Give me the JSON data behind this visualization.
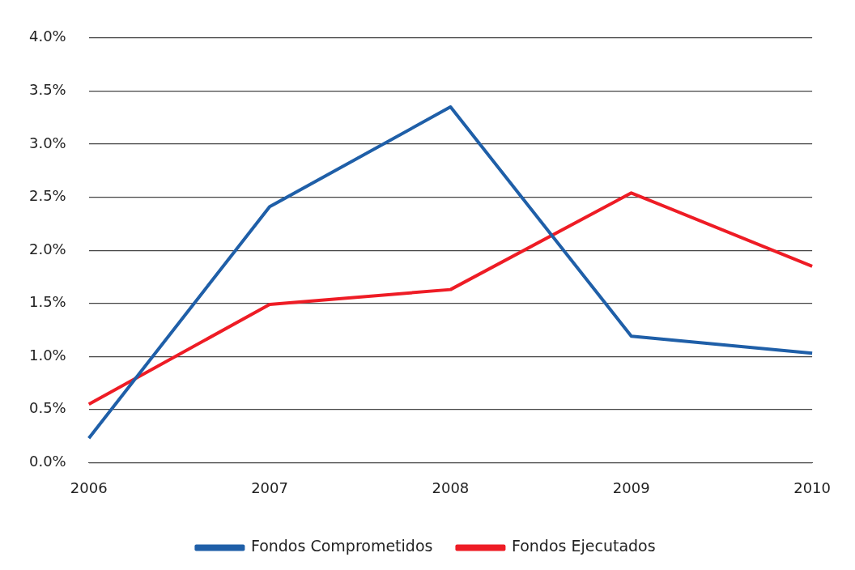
{
  "chart_data": {
    "type": "line",
    "categories": [
      "2006",
      "2007",
      "2008",
      "2009",
      "2010"
    ],
    "series": [
      {
        "name": "Fondos Comprometidos",
        "color": "#1f5fa8",
        "values": [
          0.23,
          2.41,
          3.35,
          1.19,
          1.03
        ]
      },
      {
        "name": "Fondos Ejecutados",
        "color": "#ee1c25",
        "values": [
          0.55,
          1.49,
          1.63,
          2.54,
          1.85
        ]
      }
    ],
    "ylim": [
      0,
      4
    ],
    "yticks": [
      {
        "value": 0,
        "label": "0.0%"
      },
      {
        "value": 0.5,
        "label": "0.5%"
      },
      {
        "value": 1,
        "label": "1.0%"
      },
      {
        "value": 1.5,
        "label": "1.5%"
      },
      {
        "value": 2,
        "label": "2.0%"
      },
      {
        "value": 2.5,
        "label": "2.5%"
      },
      {
        "value": 3,
        "label": "3.0%"
      },
      {
        "value": 3.5,
        "label": "3.5%"
      },
      {
        "value": 4,
        "label": "4.0%"
      }
    ],
    "grid": "y",
    "legend": "bottom",
    "marker": "none",
    "line_style": "solid"
  }
}
